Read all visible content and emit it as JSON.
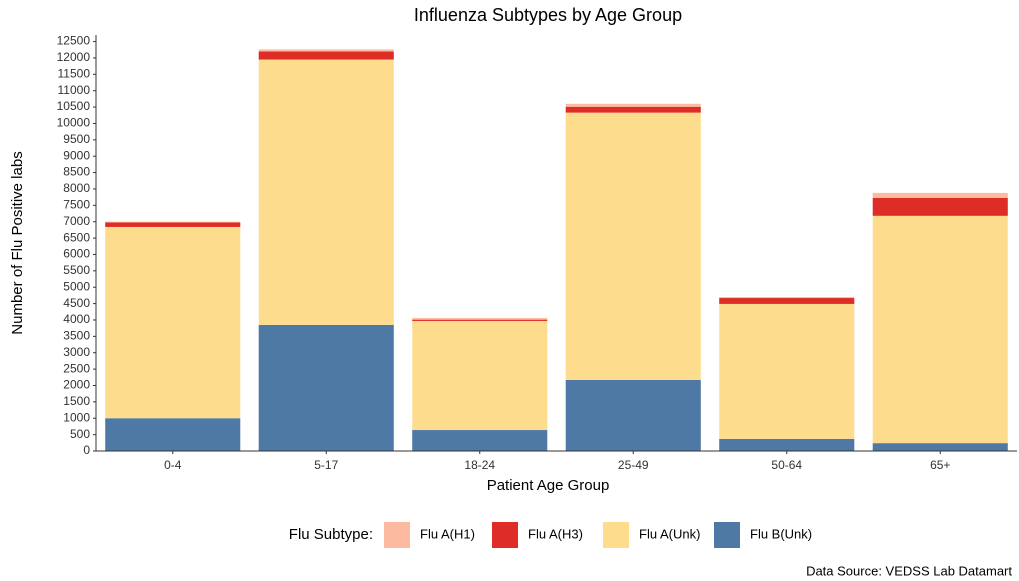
{
  "chart_data": {
    "type": "stacked_bar",
    "title": "Influenza Subtypes by Age Group",
    "x_label": "Patient Age Group",
    "y_label": "Number of Flu Positive labs",
    "legend_title": "Flu Subtype:",
    "caption": "Data Source: VEDSS Lab Datamart",
    "categories": [
      "0-4",
      "5-17",
      "18-24",
      "25-49",
      "50-64",
      "65+"
    ],
    "series": [
      {
        "name": "Flu A(H1)",
        "color": "#fcbba1",
        "values": [
          20,
          60,
          50,
          90,
          30,
          150
        ]
      },
      {
        "name": "Flu A(H3)",
        "color": "#de2d26",
        "values": [
          140,
          250,
          40,
          180,
          180,
          550
        ]
      },
      {
        "name": "Flu A(Unk)",
        "color": "#fddc8e",
        "values": [
          5840,
          8100,
          3330,
          8160,
          4120,
          6940
        ]
      },
      {
        "name": "Flu B(Unk)",
        "color": "#4e79a5",
        "values": [
          1000,
          3850,
          640,
          2170,
          370,
          240
        ]
      }
    ],
    "stack_order": "bottom-up reversed",
    "ylim": [
      0,
      12700
    ],
    "yticks": [
      0,
      500,
      1000,
      1500,
      2000,
      2500,
      3000,
      3500,
      4000,
      4500,
      5000,
      5500,
      6000,
      6500,
      7000,
      7500,
      8000,
      8500,
      9000,
      9500,
      10000,
      10500,
      11000,
      11500,
      12000,
      12500
    ],
    "legend_position": "bottom",
    "grid": false
  }
}
